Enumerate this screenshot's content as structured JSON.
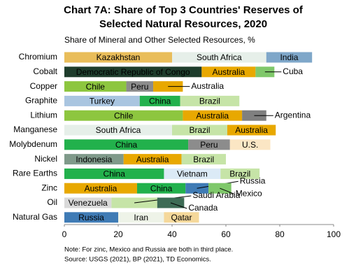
{
  "chart_data": {
    "type": "stacked-bar-horizontal",
    "title": [
      "Chart 7A: Share of Top 3 Countries' Reserves of",
      "Selected Natural Resources, 2020"
    ],
    "subtitle": "Share of Mineral and Other Selected Resources, %",
    "categories": [
      "Chromium",
      "Cobalt",
      "Copper",
      "Graphite",
      "Lithium",
      "Manganese",
      "Molybdenum",
      "Nickel",
      "Rare Earths",
      "Zinc",
      "Oil",
      "Natural Gas"
    ],
    "rows": [
      {
        "segments": [
          {
            "name": "Kazakhstan",
            "value": 40,
            "color": "#e9bd5a"
          },
          {
            "name": "South Africa",
            "value": 35,
            "color": "#e6efe9"
          },
          {
            "name": "India",
            "value": 17,
            "color": "#7fa7c9"
          }
        ]
      },
      {
        "segments": [
          {
            "name": "Democratic Republic of Congo",
            "value": 51,
            "color": "#1e3d2c"
          },
          {
            "name": "Australia",
            "value": 20,
            "color": "#e8a800"
          },
          {
            "name": "Cuba",
            "value": 7,
            "color": "#7fc86a"
          }
        ]
      },
      {
        "segments": [
          {
            "name": "Chile",
            "value": 23,
            "color": "#8dc63f"
          },
          {
            "name": "Peru",
            "value": 10,
            "color": "#8c8c8c"
          },
          {
            "name": "Australia",
            "value": 11,
            "color": "#e8a800"
          }
        ]
      },
      {
        "segments": [
          {
            "name": "Turkey",
            "value": 28,
            "color": "#a9c5e0"
          },
          {
            "name": "China",
            "value": 15,
            "color": "#22b14c"
          },
          {
            "name": "Brazil",
            "value": 22,
            "color": "#c6e4a7"
          }
        ]
      },
      {
        "segments": [
          {
            "name": "Chile",
            "value": 44,
            "color": "#8dc63f"
          },
          {
            "name": "Australia",
            "value": 22,
            "color": "#e8a800"
          },
          {
            "name": "Argentina",
            "value": 9,
            "color": "#7f7f7f"
          }
        ]
      },
      {
        "segments": [
          {
            "name": "South Africa",
            "value": 40,
            "color": "#e6efe9"
          },
          {
            "name": "Brazil",
            "value": 20.5,
            "color": "#c6e4a7"
          },
          {
            "name": "Australia",
            "value": 18,
            "color": "#e8a800"
          }
        ]
      },
      {
        "segments": [
          {
            "name": "China",
            "value": 46,
            "color": "#22b14c"
          },
          {
            "name": "Peru",
            "value": 15.5,
            "color": "#8c8c8c"
          },
          {
            "name": "U.S.",
            "value": 15,
            "color": "#fbe6c4"
          }
        ]
      },
      {
        "segments": [
          {
            "name": "Indonesia",
            "value": 22,
            "color": "#7f9a8a"
          },
          {
            "name": "Australia",
            "value": 21.5,
            "color": "#e8a800"
          },
          {
            "name": "Brazil",
            "value": 16.5,
            "color": "#c6e4a7"
          }
        ]
      },
      {
        "segments": [
          {
            "name": "China",
            "value": 37,
            "color": "#22b14c"
          },
          {
            "name": "Vietnam",
            "value": 21,
            "color": "#dbeaf6"
          },
          {
            "name": "Brazil",
            "value": 14.5,
            "color": "#c6e4a7"
          }
        ]
      },
      {
        "segments": [
          {
            "name": "Australia",
            "value": 27,
            "color": "#e8a800"
          },
          {
            "name": "China",
            "value": 18,
            "color": "#22b14c"
          },
          {
            "name": "Russia",
            "value": 8.5,
            "color": "#3f7bb5"
          },
          {
            "name": "Mexico",
            "value": 8.5,
            "color": "#7fc86a"
          }
        ]
      },
      {
        "segments": [
          {
            "name": "Venezuela",
            "value": 17.5,
            "color": "#d9d9d9"
          },
          {
            "name": "Saudi Arabia",
            "value": 17,
            "color": "#c6e4a7"
          },
          {
            "name": "Canada",
            "value": 10,
            "color": "#3d6b55"
          }
        ]
      },
      {
        "segments": [
          {
            "name": "Russia",
            "value": 20,
            "color": "#3f7bb5"
          },
          {
            "name": "Iran",
            "value": 17,
            "color": "#eef3e8"
          },
          {
            "name": "Qatar",
            "value": 13,
            "color": "#f5d89a"
          }
        ]
      }
    ],
    "xlim": [
      0,
      100
    ],
    "xticks": [
      0,
      20,
      40,
      60,
      80,
      100
    ],
    "notes": [
      "Note: For zinc, Mexico and Russia are both in third place.",
      "Source: USGS (2021), BP (2021), TD Economics."
    ]
  }
}
